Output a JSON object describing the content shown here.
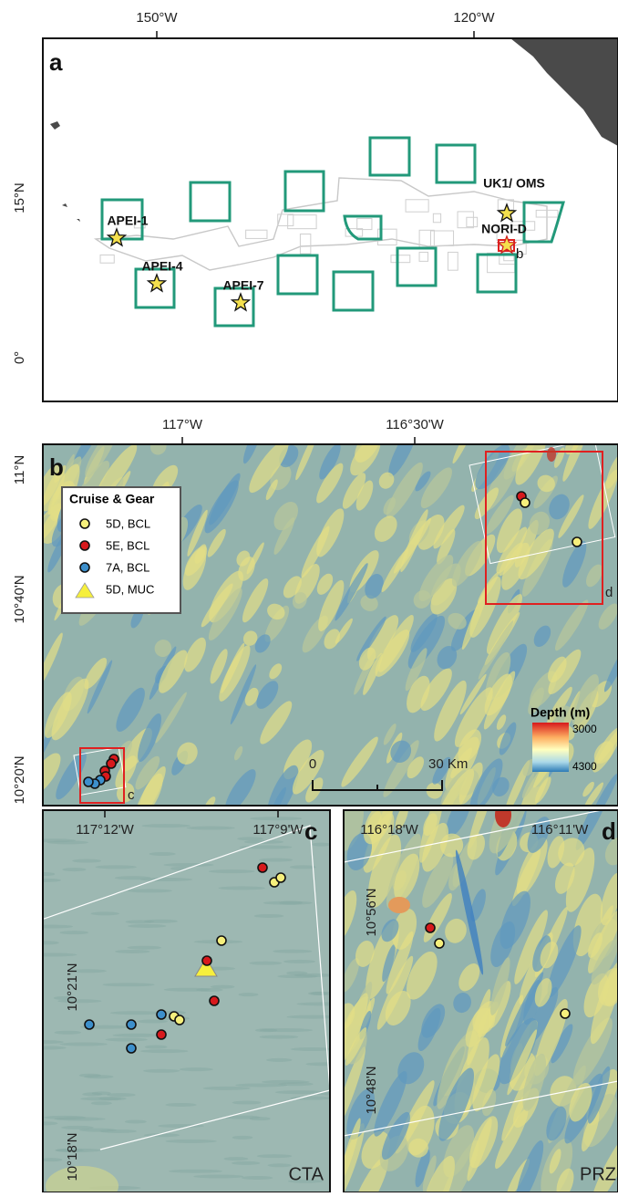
{
  "panel_a": {
    "label": "a",
    "x_ticks": [
      "150°W",
      "120°W"
    ],
    "y_ticks": [
      "15°N",
      "0°"
    ],
    "sites": [
      "APEI-1",
      "APEI-4",
      "APEI-7",
      "UK1/ OMS",
      "NORI-D"
    ],
    "inset_label": "b"
  },
  "panel_b": {
    "label": "b",
    "x_ticks": [
      "117°W",
      "116°30'W"
    ],
    "y_ticks": [
      "11°N",
      "10°40'N",
      "10°20'N"
    ],
    "legend": {
      "title": "Cruise & Gear",
      "entries": [
        "5D, BCL",
        "5E, BCL",
        "7A, BCL",
        "5D, MUC"
      ]
    },
    "depth_legend": {
      "title": "Depth (m)",
      "min": 3000,
      "max": 4300
    },
    "scale_bar": {
      "start": "0",
      "end": "30 Km"
    },
    "inset_labels": [
      "c",
      "d"
    ]
  },
  "panel_c": {
    "label": "c",
    "x_ticks": [
      "117°12'W",
      "117°9'W"
    ],
    "y_ticks": [
      "10°21'N",
      "10°18'N"
    ],
    "area": "CTA"
  },
  "panel_d": {
    "label": "d",
    "x_ticks": [
      "116°18'W",
      "116°11'W"
    ],
    "y_ticks": [
      "10°56'N",
      "10°48'N"
    ],
    "area": "PRZ"
  }
}
